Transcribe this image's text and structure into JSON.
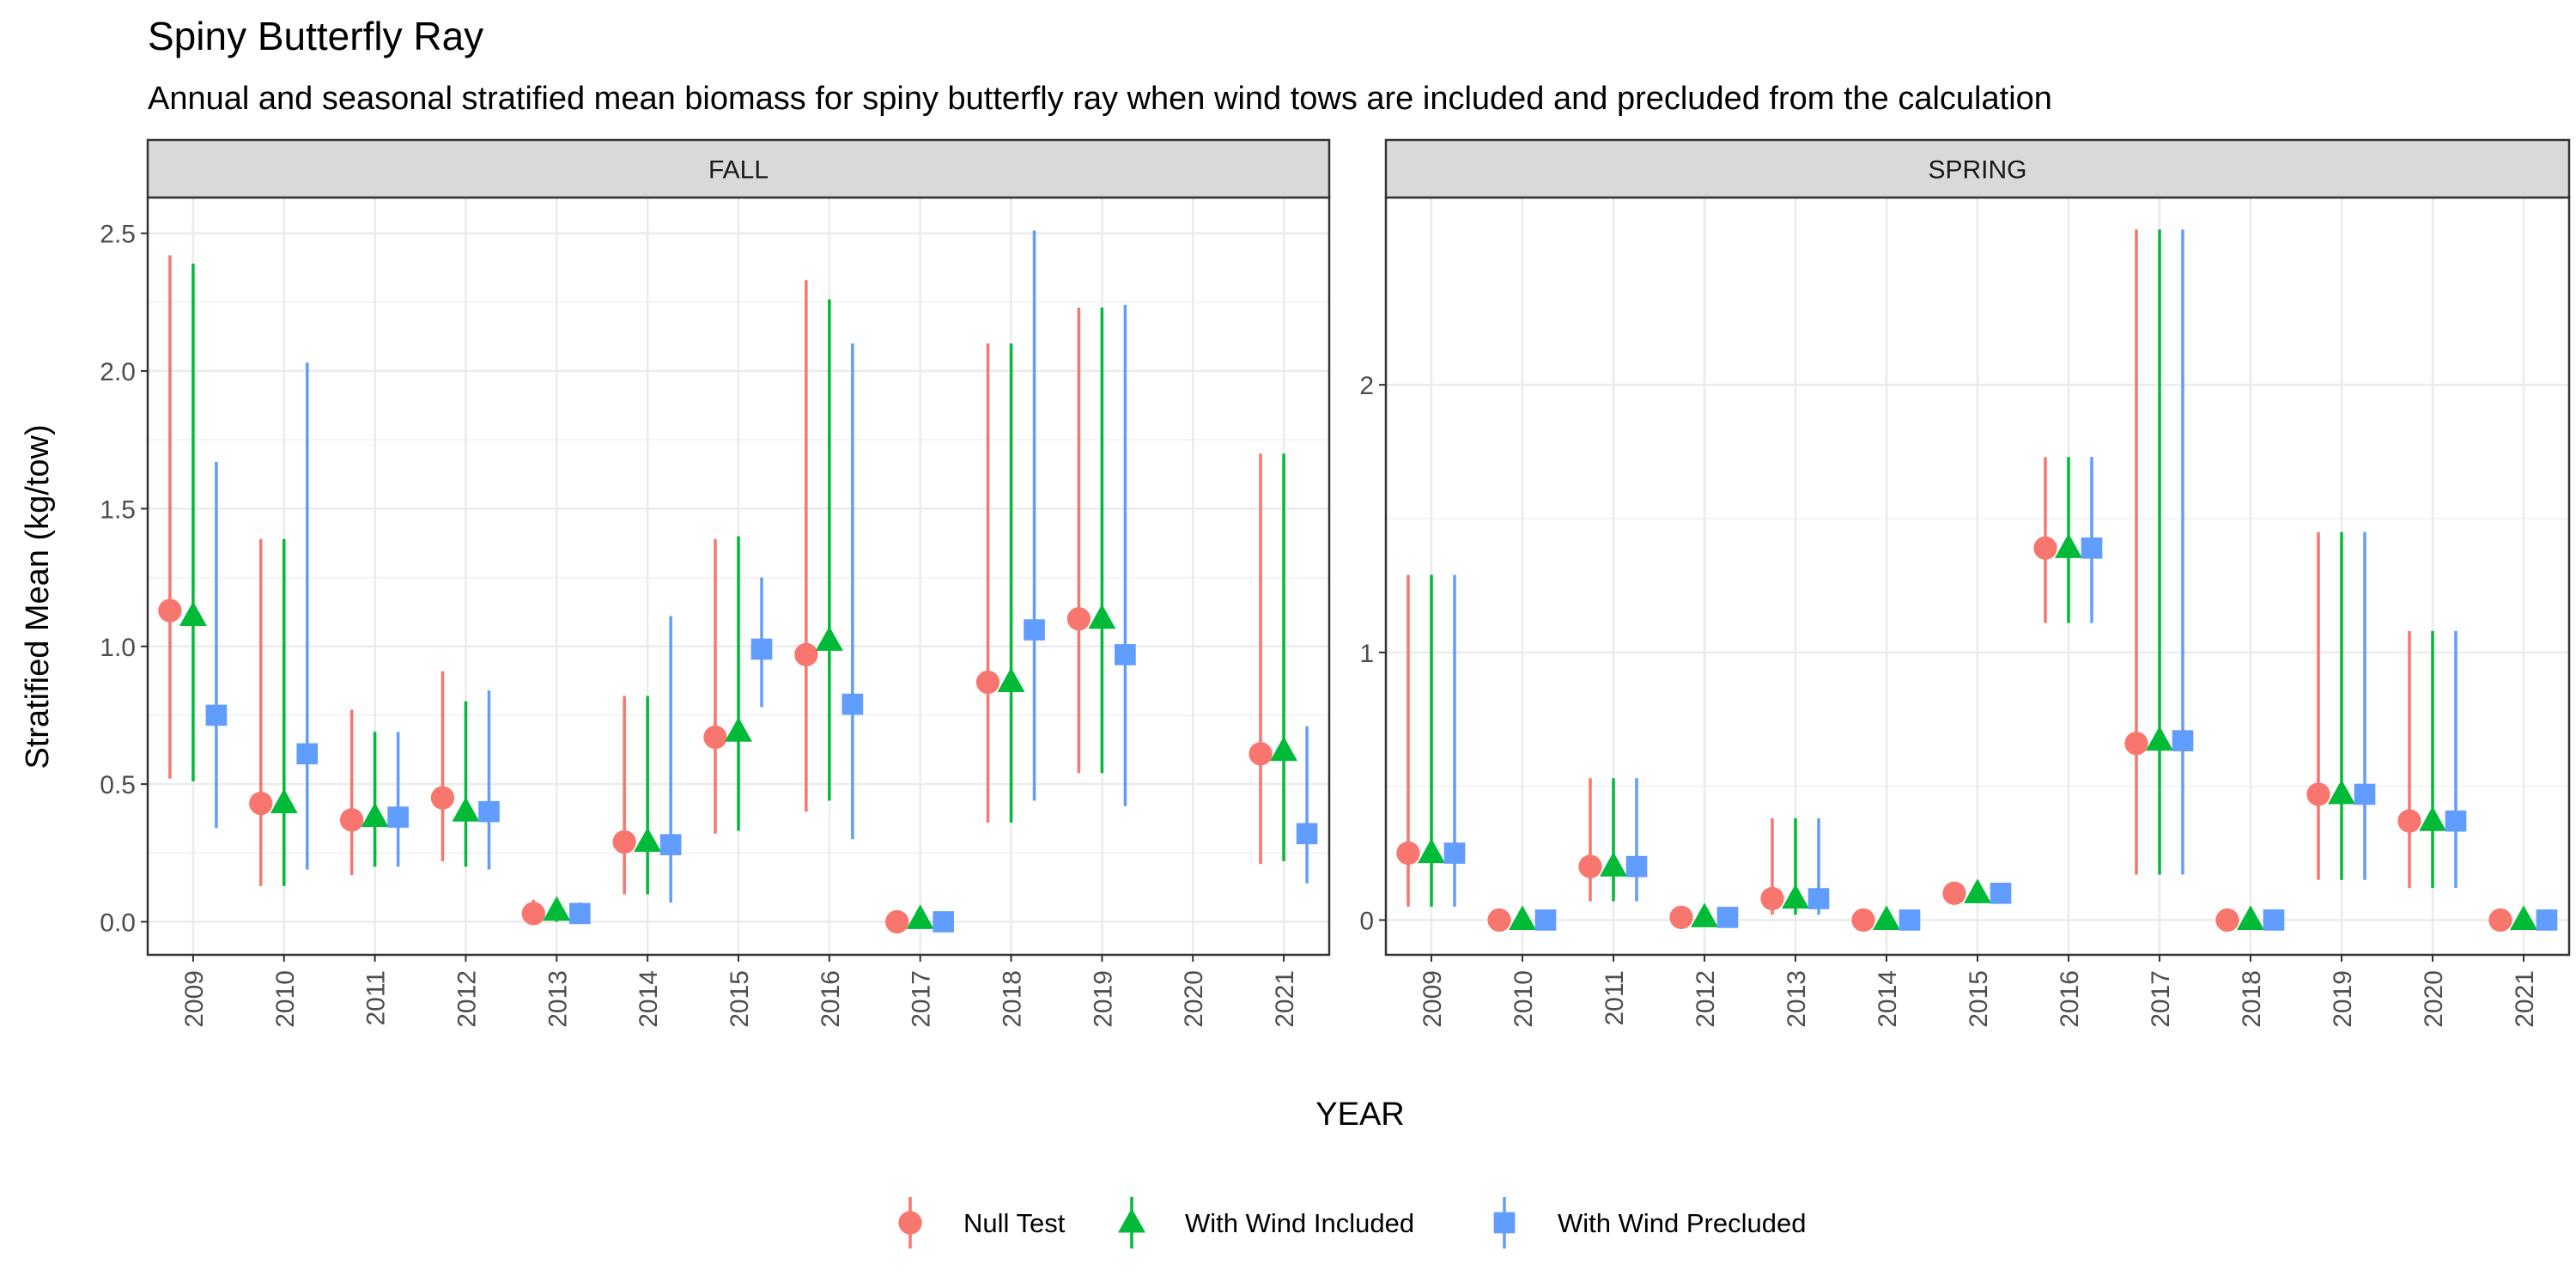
{
  "chart_data": {
    "type": "scatter",
    "title": "Spiny Butterfly Ray",
    "subtitle": "Annual and seasonal stratified mean biomass for spiny butterfly ray when wind tows are included and precluded from the calculation",
    "xlabel": "YEAR",
    "ylabel": "Stratified Mean (kg/tow)",
    "legend_position": "bottom",
    "grid": true,
    "years": [
      "2009",
      "2010",
      "2011",
      "2012",
      "2013",
      "2014",
      "2015",
      "2016",
      "2017",
      "2018",
      "2019",
      "2020",
      "2021"
    ],
    "series_styles": [
      {
        "name": "Null Test",
        "color": "#F8766D",
        "shape": "circle"
      },
      {
        "name": "With Wind Included",
        "color": "#00BA38",
        "shape": "triangle"
      },
      {
        "name": "With Wind Precluded",
        "color": "#619CFF",
        "shape": "square"
      }
    ],
    "panels": [
      {
        "name": "FALL",
        "ylim": [
          -0.12,
          2.63
        ],
        "yticks": [
          0,
          0.5,
          1,
          1.5,
          2,
          2.5
        ],
        "yticklabels": [
          "0.0",
          "0.5",
          "1.0",
          "1.5",
          "2.0",
          "2.5"
        ],
        "series": [
          {
            "name": "Null Test",
            "points": [
              {
                "x": "2009",
                "mean": 1.13,
                "lo": 0.52,
                "hi": 2.42
              },
              {
                "x": "2010",
                "mean": 0.43,
                "lo": 0.13,
                "hi": 1.39
              },
              {
                "x": "2011",
                "mean": 0.37,
                "lo": 0.17,
                "hi": 0.77
              },
              {
                "x": "2012",
                "mean": 0.45,
                "lo": 0.22,
                "hi": 0.91
              },
              {
                "x": "2013",
                "mean": 0.03,
                "lo": 0.0,
                "hi": 0.08
              },
              {
                "x": "2014",
                "mean": 0.29,
                "lo": 0.1,
                "hi": 0.82
              },
              {
                "x": "2015",
                "mean": 0.67,
                "lo": 0.32,
                "hi": 1.39
              },
              {
                "x": "2016",
                "mean": 0.97,
                "lo": 0.4,
                "hi": 2.33
              },
              {
                "x": "2017",
                "mean": 0.0,
                "lo": 0.0,
                "hi": 0.0
              },
              {
                "x": "2018",
                "mean": 0.87,
                "lo": 0.36,
                "hi": 2.1
              },
              {
                "x": "2019",
                "mean": 1.1,
                "lo": 0.54,
                "hi": 2.23
              },
              {
                "x": "2021",
                "mean": 0.61,
                "lo": 0.21,
                "hi": 1.7
              }
            ]
          },
          {
            "name": "With Wind Included",
            "points": [
              {
                "x": "2009",
                "mean": 1.11,
                "lo": 0.51,
                "hi": 2.39
              },
              {
                "x": "2010",
                "mean": 0.43,
                "lo": 0.13,
                "hi": 1.39
              },
              {
                "x": "2011",
                "mean": 0.38,
                "lo": 0.2,
                "hi": 0.69
              },
              {
                "x": "2012",
                "mean": 0.4,
                "lo": 0.2,
                "hi": 0.8
              },
              {
                "x": "2013",
                "mean": 0.04,
                "lo": 0.0,
                "hi": 0.08
              },
              {
                "x": "2014",
                "mean": 0.29,
                "lo": 0.1,
                "hi": 0.82
              },
              {
                "x": "2015",
                "mean": 0.69,
                "lo": 0.33,
                "hi": 1.4
              },
              {
                "x": "2016",
                "mean": 1.02,
                "lo": 0.44,
                "hi": 2.26
              },
              {
                "x": "2017",
                "mean": 0.01,
                "lo": 0.0,
                "hi": 0.01
              },
              {
                "x": "2018",
                "mean": 0.87,
                "lo": 0.36,
                "hi": 2.1
              },
              {
                "x": "2019",
                "mean": 1.1,
                "lo": 0.54,
                "hi": 2.23
              },
              {
                "x": "2021",
                "mean": 0.62,
                "lo": 0.22,
                "hi": 1.7
              }
            ]
          },
          {
            "name": "With Wind Precluded",
            "points": [
              {
                "x": "2009",
                "mean": 0.75,
                "lo": 0.34,
                "hi": 1.67
              },
              {
                "x": "2010",
                "mean": 0.61,
                "lo": 0.19,
                "hi": 2.03
              },
              {
                "x": "2011",
                "mean": 0.38,
                "lo": 0.2,
                "hi": 0.69
              },
              {
                "x": "2012",
                "mean": 0.4,
                "lo": 0.19,
                "hi": 0.84
              },
              {
                "x": "2013",
                "mean": 0.03,
                "lo": 0.0,
                "hi": 0.07
              },
              {
                "x": "2014",
                "mean": 0.28,
                "lo": 0.07,
                "hi": 1.11
              },
              {
                "x": "2015",
                "mean": 0.99,
                "lo": 0.78,
                "hi": 1.25
              },
              {
                "x": "2016",
                "mean": 0.79,
                "lo": 0.3,
                "hi": 2.1
              },
              {
                "x": "2017",
                "mean": 0.0,
                "lo": 0.0,
                "hi": 0.0
              },
              {
                "x": "2018",
                "mean": 1.06,
                "lo": 0.44,
                "hi": 2.51
              },
              {
                "x": "2019",
                "mean": 0.97,
                "lo": 0.42,
                "hi": 2.24
              },
              {
                "x": "2021",
                "mean": 0.32,
                "lo": 0.14,
                "hi": 0.71
              }
            ]
          }
        ]
      },
      {
        "name": "SPRING",
        "ylim": [
          -0.13,
          2.7
        ],
        "yticks": [
          0,
          1,
          2
        ],
        "yticklabels": [
          "0",
          "1",
          "2"
        ],
        "series": [
          {
            "name": "Null Test",
            "points": [
              {
                "x": "2009",
                "mean": 0.25,
                "lo": 0.05,
                "hi": 1.29
              },
              {
                "x": "2010",
                "mean": 0.0,
                "lo": 0.0,
                "hi": 0.0
              },
              {
                "x": "2011",
                "mean": 0.2,
                "lo": 0.07,
                "hi": 0.53
              },
              {
                "x": "2012",
                "mean": 0.01,
                "lo": 0.0,
                "hi": 0.03
              },
              {
                "x": "2013",
                "mean": 0.08,
                "lo": 0.02,
                "hi": 0.38
              },
              {
                "x": "2014",
                "mean": 0.0,
                "lo": 0.0,
                "hi": 0.0
              },
              {
                "x": "2015",
                "mean": 0.1,
                "lo": 0.09,
                "hi": 0.11
              },
              {
                "x": "2016",
                "mean": 1.39,
                "lo": 1.11,
                "hi": 1.73
              },
              {
                "x": "2017",
                "mean": 0.66,
                "lo": 0.17,
                "hi": 2.58
              },
              {
                "x": "2018",
                "mean": 0.0,
                "lo": 0.0,
                "hi": 0.0
              },
              {
                "x": "2019",
                "mean": 0.47,
                "lo": 0.15,
                "hi": 1.45
              },
              {
                "x": "2020",
                "mean": 0.37,
                "lo": 0.12,
                "hi": 1.08
              },
              {
                "x": "2021",
                "mean": 0.0,
                "lo": 0.0,
                "hi": 0.0
              }
            ]
          },
          {
            "name": "With Wind Included",
            "points": [
              {
                "x": "2009",
                "mean": 0.25,
                "lo": 0.05,
                "hi": 1.29
              },
              {
                "x": "2010",
                "mean": 0.0,
                "lo": 0.0,
                "hi": 0.0
              },
              {
                "x": "2011",
                "mean": 0.2,
                "lo": 0.07,
                "hi": 0.53
              },
              {
                "x": "2012",
                "mean": 0.01,
                "lo": 0.0,
                "hi": 0.03
              },
              {
                "x": "2013",
                "mean": 0.08,
                "lo": 0.02,
                "hi": 0.38
              },
              {
                "x": "2014",
                "mean": 0.0,
                "lo": 0.0,
                "hi": 0.0
              },
              {
                "x": "2015",
                "mean": 0.1,
                "lo": 0.09,
                "hi": 0.11
              },
              {
                "x": "2016",
                "mean": 1.39,
                "lo": 1.11,
                "hi": 1.73
              },
              {
                "x": "2017",
                "mean": 0.67,
                "lo": 0.17,
                "hi": 2.58
              },
              {
                "x": "2018",
                "mean": 0.0,
                "lo": 0.0,
                "hi": 0.0
              },
              {
                "x": "2019",
                "mean": 0.47,
                "lo": 0.15,
                "hi": 1.45
              },
              {
                "x": "2020",
                "mean": 0.37,
                "lo": 0.12,
                "hi": 1.08
              },
              {
                "x": "2021",
                "mean": 0.0,
                "lo": 0.0,
                "hi": 0.0
              }
            ]
          },
          {
            "name": "With Wind Precluded",
            "points": [
              {
                "x": "2009",
                "mean": 0.25,
                "lo": 0.05,
                "hi": 1.29
              },
              {
                "x": "2010",
                "mean": 0.0,
                "lo": 0.0,
                "hi": 0.0
              },
              {
                "x": "2011",
                "mean": 0.2,
                "lo": 0.07,
                "hi": 0.53
              },
              {
                "x": "2012",
                "mean": 0.01,
                "lo": 0.0,
                "hi": 0.03
              },
              {
                "x": "2013",
                "mean": 0.08,
                "lo": 0.02,
                "hi": 0.38
              },
              {
                "x": "2014",
                "mean": 0.0,
                "lo": 0.0,
                "hi": 0.0
              },
              {
                "x": "2015",
                "mean": 0.1,
                "lo": 0.09,
                "hi": 0.11
              },
              {
                "x": "2016",
                "mean": 1.39,
                "lo": 1.11,
                "hi": 1.73
              },
              {
                "x": "2017",
                "mean": 0.67,
                "lo": 0.17,
                "hi": 2.58
              },
              {
                "x": "2018",
                "mean": 0.0,
                "lo": 0.0,
                "hi": 0.0
              },
              {
                "x": "2019",
                "mean": 0.47,
                "lo": 0.15,
                "hi": 1.45
              },
              {
                "x": "2020",
                "mean": 0.37,
                "lo": 0.12,
                "hi": 1.08
              },
              {
                "x": "2021",
                "mean": 0.0,
                "lo": 0.0,
                "hi": 0.0
              }
            ]
          }
        ]
      }
    ]
  }
}
